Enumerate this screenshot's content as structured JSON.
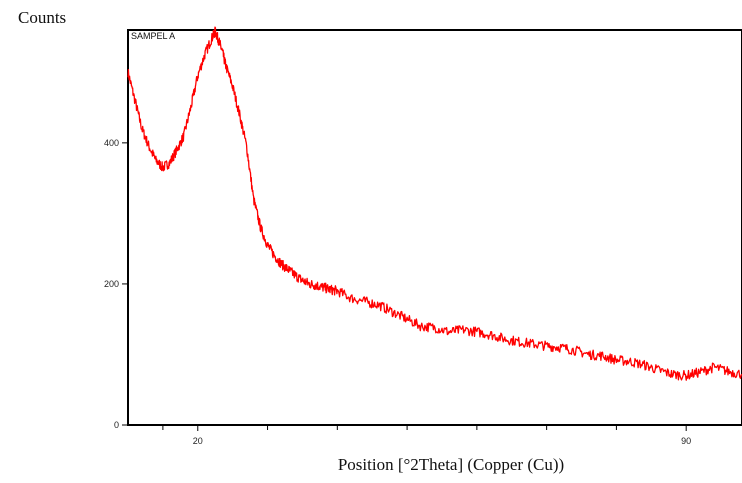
{
  "chart_data": {
    "type": "line",
    "title": "",
    "annotation": "SAMPEL A",
    "xlabel": "Position [°2Theta] (Copper (Cu))",
    "ylabel": "Counts",
    "xlim": [
      10,
      98
    ],
    "ylim": [
      0,
      560
    ],
    "grid": false,
    "x_ticks": [
      20,
      90
    ],
    "x_tick_labels": [
      "20",
      "90"
    ],
    "x_minor_ticks": [
      15,
      30,
      40,
      50,
      60,
      70,
      80
    ],
    "y_ticks": [
      0,
      200,
      400
    ],
    "y_tick_labels": [
      "0",
      "200",
      "400"
    ],
    "series": [
      {
        "color": "#ff0000",
        "x": [
          10.0,
          11.0,
          12.0,
          13.0,
          14.0,
          15.0,
          16.0,
          17.0,
          18.0,
          19.0,
          20.0,
          21.0,
          22.0,
          22.5,
          23.0,
          23.5,
          24.0,
          25.0,
          26.0,
          27.0,
          28.0,
          29.0,
          30.0,
          31.0,
          32.0,
          33.0,
          34.0,
          35.0,
          36.0,
          37.0,
          38.0,
          39.0,
          40.0,
          42.0,
          44.0,
          46.0,
          48.0,
          50.0,
          52.0,
          54.0,
          56.0,
          58.0,
          60.0,
          62.0,
          64.0,
          66.0,
          68.0,
          70.0,
          72.0,
          74.0,
          76.0,
          78.0,
          80.0,
          82.0,
          84.0,
          86.0,
          88.0,
          90.0,
          92.0,
          94.0,
          96.0,
          98.0
        ],
        "y": [
          500,
          460,
          420,
          395,
          375,
          365,
          372,
          390,
          410,
          450,
          495,
          525,
          548,
          558,
          545,
          530,
          510,
          480,
          440,
          395,
          320,
          280,
          255,
          240,
          228,
          220,
          212,
          205,
          200,
          198,
          195,
          192,
          190,
          180,
          175,
          170,
          160,
          150,
          140,
          138,
          132,
          135,
          132,
          128,
          122,
          118,
          115,
          112,
          110,
          106,
          100,
          98,
          92,
          90,
          85,
          78,
          72,
          70,
          75,
          82,
          76,
          72
        ]
      }
    ]
  }
}
